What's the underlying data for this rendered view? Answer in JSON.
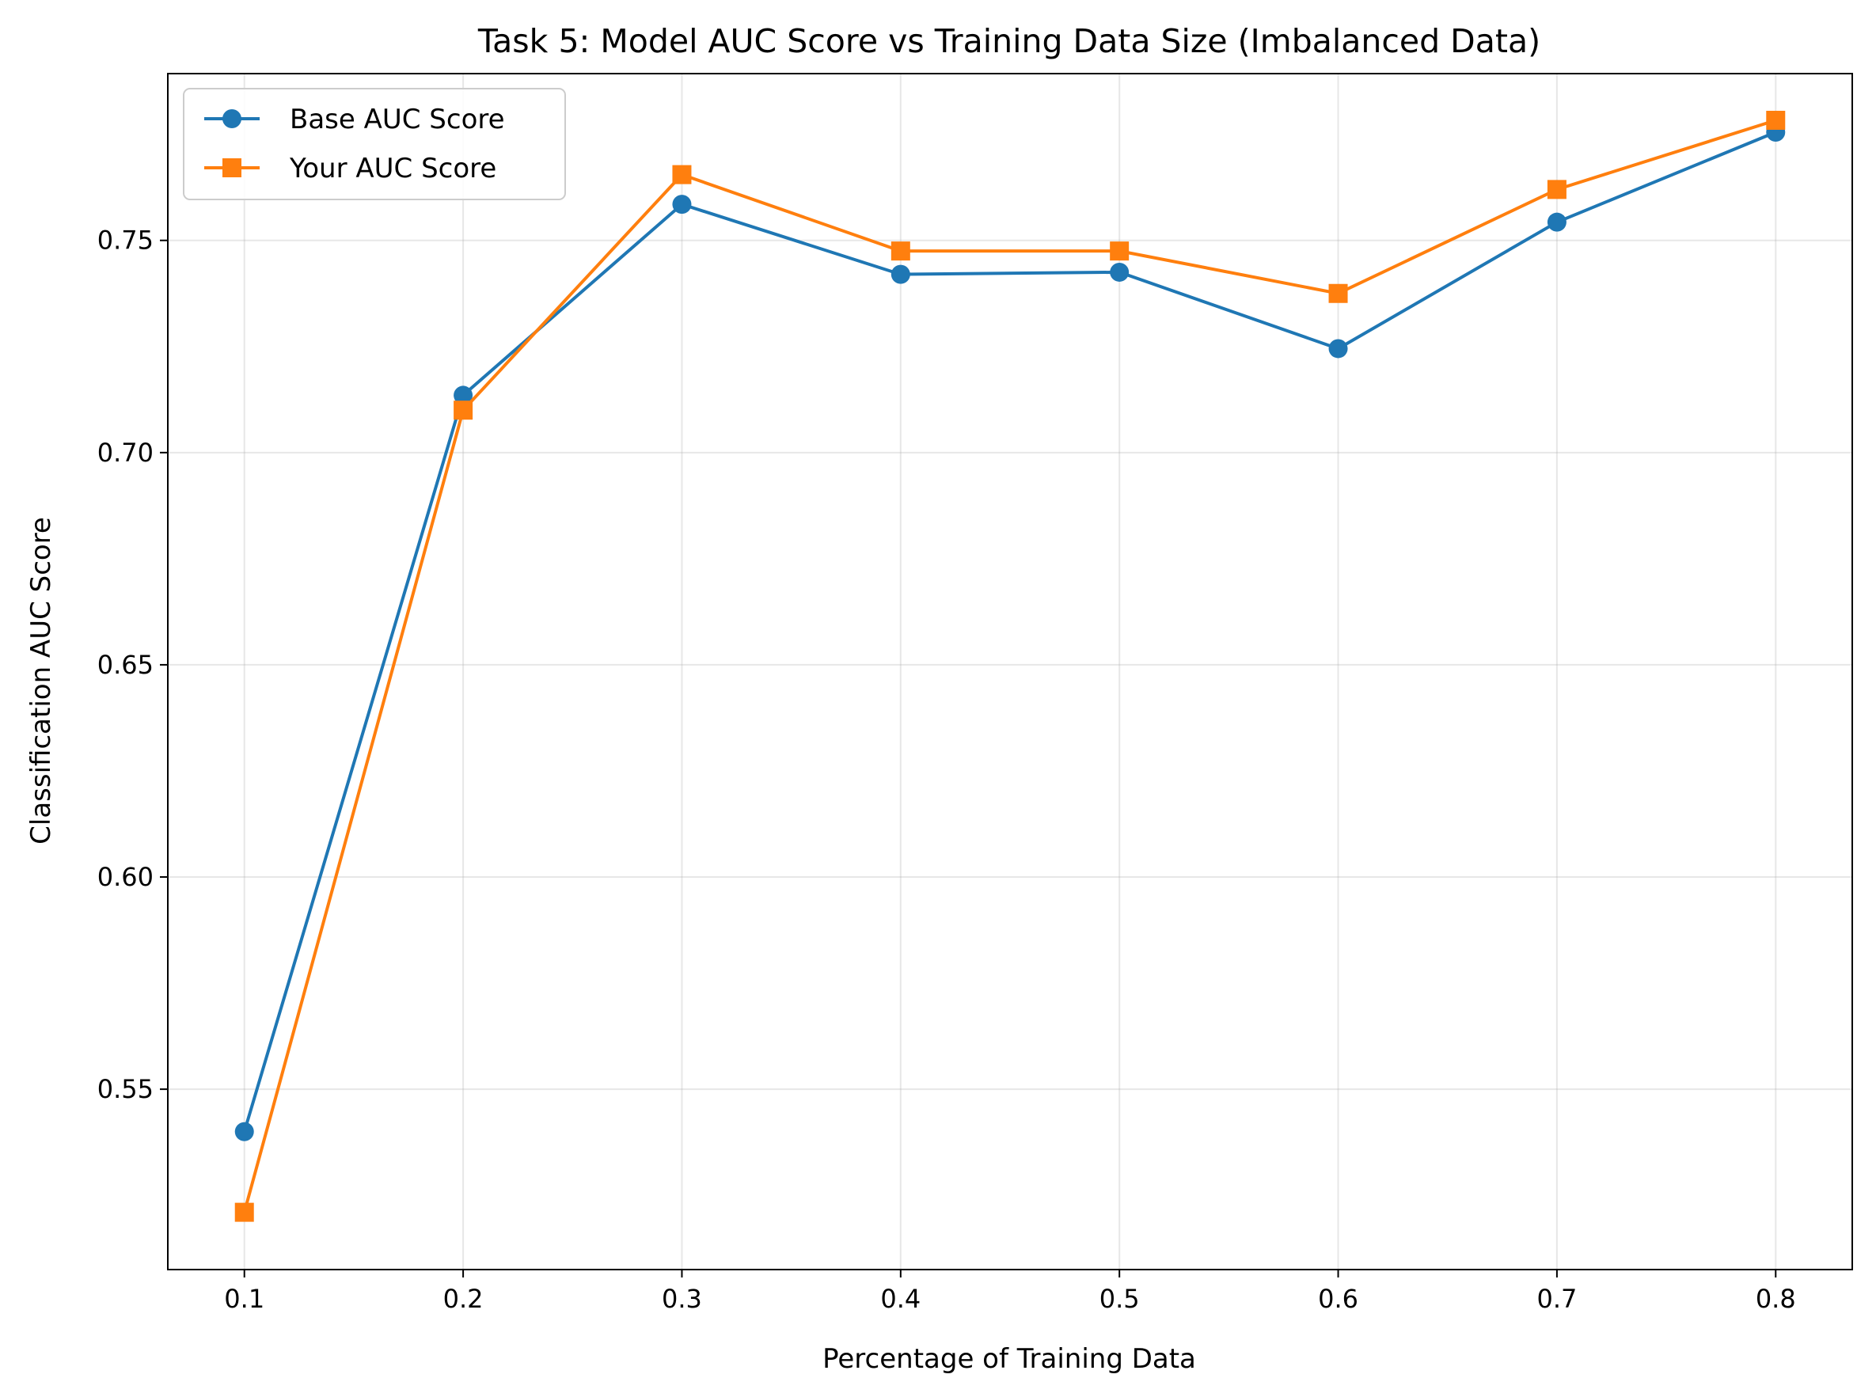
{
  "chart_data": {
    "type": "line",
    "title": "Task 5: Model AUC Score vs Training Data Size (Imbalanced Data)",
    "xlabel": "Percentage of Training Data",
    "ylabel": "Classification AUC Score",
    "x": [
      0.1,
      0.2,
      0.3,
      0.4,
      0.5,
      0.6,
      0.7,
      0.8
    ],
    "xticks": [
      "0.1",
      "0.2",
      "0.3",
      "0.4",
      "0.5",
      "0.6",
      "0.7",
      "0.8"
    ],
    "yticks": [
      "0.55",
      "0.60",
      "0.65",
      "0.70",
      "0.75"
    ],
    "xlim": [
      0.065,
      0.835
    ],
    "ylim": [
      0.5075,
      0.7893
    ],
    "grid": true,
    "legend_position": "upper-left",
    "series": [
      {
        "name": "Base AUC Score",
        "marker": "circle",
        "color": "#1f77b4",
        "values": [
          0.54,
          0.7135,
          0.7585,
          0.742,
          0.7425,
          0.7245,
          0.7543,
          0.7755
        ]
      },
      {
        "name": "Your AUC Score",
        "marker": "square",
        "color": "#ff7f0e",
        "values": [
          0.521,
          0.71,
          0.7655,
          0.7475,
          0.7475,
          0.7375,
          0.762,
          0.7783
        ]
      }
    ]
  }
}
